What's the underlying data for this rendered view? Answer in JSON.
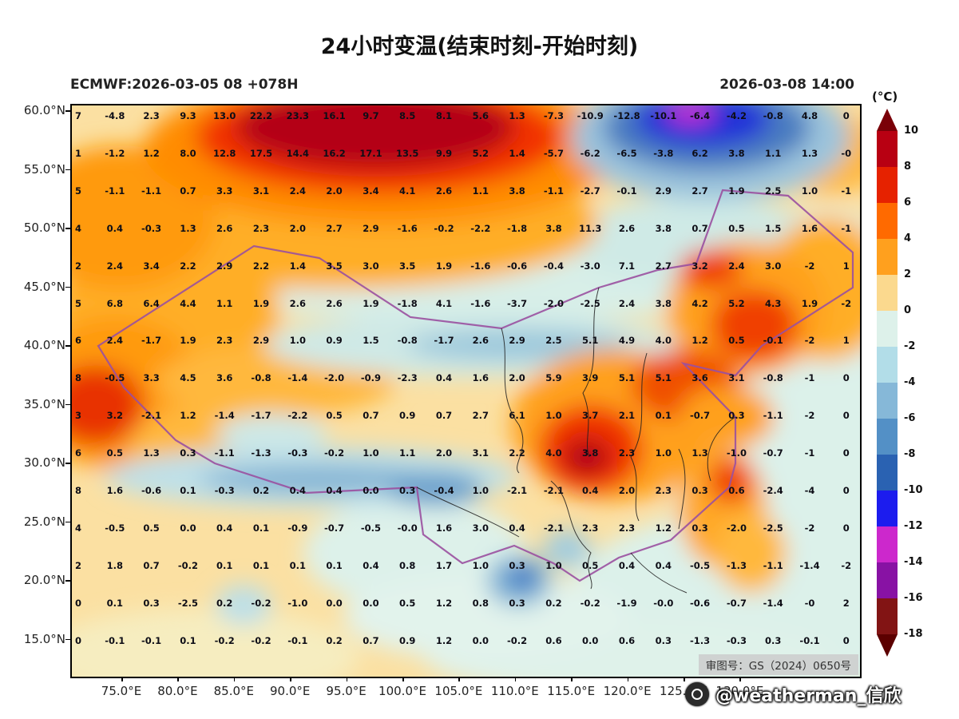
{
  "title": "24小时变温(结束时刻-开始时刻)",
  "header": {
    "left": "ECMWF:2026-03-05 08 +078H",
    "right": "2026-03-08 14:00"
  },
  "watermark": {
    "license": "审图号：GS（2024）0650号",
    "handle": "@weatherman_信欣"
  },
  "chart_data": {
    "type": "heatmap",
    "title": "24小时变温(结束时刻-开始时刻)",
    "model_run_label": "ECMWF:2026-03-05 08 +078H",
    "valid_time_label": "2026-03-08 14:00",
    "unit_label": "(°C)",
    "lat_ticks": [
      "60.0°N",
      "55.0°N",
      "50.0°N",
      "45.0°N",
      "40.0°N",
      "35.0°N",
      "30.0°N",
      "25.0°N",
      "20.0°N",
      "15.0°N"
    ],
    "lon_ticks": [
      "75.0°E",
      "80.0°E",
      "85.0°E",
      "90.0°E",
      "95.0°E",
      "100.0°E",
      "105.0°E",
      "110.0°E",
      "115.0°E",
      "120.0°E",
      "125.0°E",
      "130.0°E"
    ],
    "colorbar": {
      "title": "(°C)",
      "tick_labels": [
        "10",
        "8",
        "6",
        "4",
        "2",
        "0",
        "-2",
        "-4",
        "-6",
        "-8",
        "-10",
        "-12",
        "-14",
        "-16",
        "-18"
      ],
      "arrow_top_color": "#7a0008",
      "arrow_bottom_color": "#5c0000",
      "segment_colors": [
        "#b80012",
        "#e62200",
        "#ff6a00",
        "#ffa01e",
        "#fbd98e",
        "#ddf1ea",
        "#b2dde8",
        "#86b8d8",
        "#5390c6",
        "#2a62b2",
        "#1c1cee",
        "#cc28cc",
        "#8812a4",
        "#821414"
      ]
    },
    "grid_values": [
      [
        "7",
        "-4.8",
        "2.3",
        "9.3",
        "13.0",
        "22.2",
        "23.3",
        "16.1",
        "9.7",
        "8.5",
        "8.1",
        "5.6",
        "1.3",
        "-7.3",
        "-10.9",
        "-12.8",
        "-10.1",
        "-6.4",
        "-4.2",
        "-0.8",
        "4.8",
        "0"
      ],
      [
        "1",
        "-1.2",
        "1.2",
        "8.0",
        "12.8",
        "17.5",
        "14.4",
        "16.2",
        "17.1",
        "13.5",
        "9.9",
        "5.2",
        "1.4",
        "-5.7",
        "-6.2",
        "-6.5",
        "-3.8",
        "6.2",
        "3.8",
        "1.1",
        "1.3",
        "-0"
      ],
      [
        "5",
        "-1.1",
        "-1.1",
        "0.7",
        "3.3",
        "3.1",
        "2.4",
        "2.0",
        "3.4",
        "4.1",
        "2.6",
        "1.1",
        "3.8",
        "-1.1",
        "-2.7",
        "-0.1",
        "2.9",
        "2.7",
        "1.9",
        "2.5",
        "1.0",
        "-1"
      ],
      [
        "4",
        "0.4",
        "-0.3",
        "1.3",
        "2.6",
        "2.3",
        "2.0",
        "2.7",
        "2.9",
        "-1.6",
        "-0.2",
        "-2.2",
        "-1.8",
        "3.8",
        "11.3",
        "2.6",
        "3.8",
        "0.7",
        "0.5",
        "1.5",
        "1.6",
        "-1"
      ],
      [
        "2",
        "2.4",
        "3.4",
        "2.2",
        "2.9",
        "2.2",
        "1.4",
        "3.5",
        "3.0",
        "3.5",
        "1.9",
        "-1.6",
        "-0.6",
        "-0.4",
        "-3.0",
        "7.1",
        "2.7",
        "3.2",
        "2.4",
        "3.0",
        "-2",
        "1"
      ],
      [
        "5",
        "6.8",
        "6.4",
        "4.4",
        "1.1",
        "1.9",
        "2.6",
        "2.6",
        "1.9",
        "-1.8",
        "4.1",
        "-1.6",
        "-3.7",
        "-2.0",
        "-2.5",
        "2.4",
        "3.8",
        "4.2",
        "5.2",
        "4.3",
        "1.9",
        "-2"
      ],
      [
        "6",
        "2.4",
        "-1.7",
        "1.9",
        "2.3",
        "2.9",
        "1.0",
        "0.9",
        "1.5",
        "-0.8",
        "-1.7",
        "2.6",
        "2.9",
        "2.5",
        "5.1",
        "4.9",
        "4.0",
        "1.2",
        "0.5",
        "-0.1",
        "-2",
        "1"
      ],
      [
        "8",
        "-0.5",
        "3.3",
        "4.5",
        "3.6",
        "-0.8",
        "-1.4",
        "-2.0",
        "-0.9",
        "-2.3",
        "0.4",
        "1.6",
        "2.0",
        "5.9",
        "3.9",
        "5.1",
        "5.1",
        "3.6",
        "3.1",
        "-0.8",
        "-1",
        "0"
      ],
      [
        "3",
        "3.2",
        "-2.1",
        "1.2",
        "-1.4",
        "-1.7",
        "-2.2",
        "0.5",
        "0.7",
        "0.9",
        "0.7",
        "2.7",
        "6.1",
        "1.0",
        "3.7",
        "2.1",
        "0.1",
        "-0.7",
        "0.3",
        "-1.1",
        "-2",
        "0"
      ],
      [
        "6",
        "0.5",
        "1.3",
        "0.3",
        "-1.1",
        "-1.3",
        "-0.3",
        "-0.2",
        "1.0",
        "1.1",
        "2.0",
        "3.1",
        "2.2",
        "4.0",
        "3.8",
        "2.3",
        "1.0",
        "1.3",
        "-1.0",
        "-0.7",
        "-1",
        "0"
      ],
      [
        "8",
        "1.6",
        "-0.6",
        "0.1",
        "-0.3",
        "0.2",
        "0.4",
        "0.4",
        "0.0",
        "0.3",
        "-0.4",
        "1.0",
        "-2.1",
        "-2.1",
        "0.4",
        "2.0",
        "2.3",
        "0.3",
        "0.6",
        "-2.4",
        "-4",
        "0"
      ],
      [
        "4",
        "-0.5",
        "0.5",
        "0.0",
        "0.4",
        "0.1",
        "-0.9",
        "-0.7",
        "-0.5",
        "-0.0",
        "1.6",
        "3.0",
        "0.4",
        "-2.1",
        "2.3",
        "2.3",
        "1.2",
        "0.3",
        "-2.0",
        "-2.5",
        "-2",
        "0"
      ],
      [
        "2",
        "1.8",
        "0.7",
        "-0.2",
        "0.1",
        "0.1",
        "0.1",
        "0.1",
        "0.4",
        "0.8",
        "1.7",
        "1.0",
        "0.3",
        "1.0",
        "0.5",
        "0.4",
        "0.4",
        "-0.5",
        "-1.3",
        "-1.1",
        "-1.4",
        "-2"
      ],
      [
        "0",
        "0.1",
        "0.3",
        "-2.5",
        "0.2",
        "-0.2",
        "-1.0",
        "0.0",
        "0.0",
        "0.5",
        "1.2",
        "0.8",
        "0.3",
        "0.2",
        "-0.2",
        "-1.9",
        "-0.0",
        "-0.6",
        "-0.7",
        "-1.4",
        "-0",
        "2"
      ],
      [
        "0",
        "-0.1",
        "-0.1",
        "0.1",
        "-0.2",
        "-0.2",
        "-0.1",
        "0.2",
        "0.7",
        "0.9",
        "1.2",
        "0.0",
        "-0.2",
        "0.6",
        "0.0",
        "0.6",
        "0.3",
        "-1.3",
        "-0.3",
        "0.3",
        "-0.1",
        "0"
      ]
    ]
  }
}
